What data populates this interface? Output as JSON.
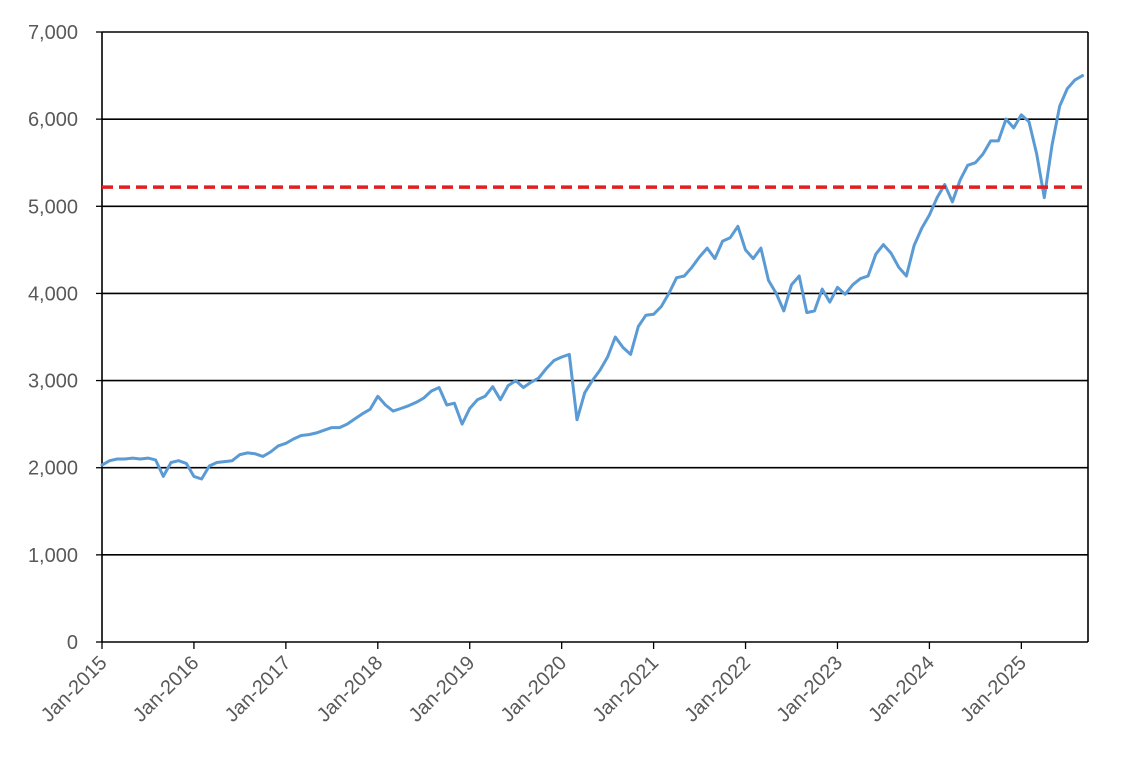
{
  "chart_data": {
    "type": "line",
    "title": "",
    "xlabel": "",
    "ylabel": "",
    "ylim": [
      0,
      7000
    ],
    "xlim": [
      "2015-01",
      "2025-09"
    ],
    "y_ticks": [
      "0",
      "1,000",
      "2,000",
      "3,000",
      "4,000",
      "5,000",
      "6,000",
      "7,000"
    ],
    "y_tick_values": [
      0,
      1000,
      2000,
      3000,
      4000,
      5000,
      6000,
      7000
    ],
    "x_ticks": [
      "Jan-2015",
      "Jan-2016",
      "Jan-2017",
      "Jan-2018",
      "Jan-2019",
      "Jan-2020",
      "Jan-2021",
      "Jan-2022",
      "Jan-2023",
      "Jan-2024",
      "Jan-2025"
    ],
    "x_tick_dates": [
      "2015-01",
      "2016-01",
      "2017-01",
      "2018-01",
      "2019-01",
      "2020-01",
      "2021-01",
      "2022-01",
      "2023-01",
      "2024-01",
      "2025-01"
    ],
    "gridlines": "horizontal",
    "legend": "none",
    "series": [
      {
        "color": "#5b9bd5",
        "x": [
          "2015-01",
          "2015-02",
          "2015-03",
          "2015-04",
          "2015-05",
          "2015-06",
          "2015-07",
          "2015-08",
          "2015-09",
          "2015-10",
          "2015-11",
          "2015-12",
          "2016-01",
          "2016-02",
          "2016-03",
          "2016-04",
          "2016-05",
          "2016-06",
          "2016-07",
          "2016-08",
          "2016-09",
          "2016-10",
          "2016-11",
          "2016-12",
          "2017-01",
          "2017-02",
          "2017-03",
          "2017-04",
          "2017-05",
          "2017-06",
          "2017-07",
          "2017-08",
          "2017-09",
          "2017-10",
          "2017-11",
          "2017-12",
          "2018-01",
          "2018-02",
          "2018-03",
          "2018-04",
          "2018-05",
          "2018-06",
          "2018-07",
          "2018-08",
          "2018-09",
          "2018-10",
          "2018-11",
          "2018-12",
          "2019-01",
          "2019-02",
          "2019-03",
          "2019-04",
          "2019-05",
          "2019-06",
          "2019-07",
          "2019-08",
          "2019-09",
          "2019-10",
          "2019-11",
          "2019-12",
          "2020-01",
          "2020-02",
          "2020-03",
          "2020-04",
          "2020-05",
          "2020-06",
          "2020-07",
          "2020-08",
          "2020-09",
          "2020-10",
          "2020-11",
          "2020-12",
          "2021-01",
          "2021-02",
          "2021-03",
          "2021-04",
          "2021-05",
          "2021-06",
          "2021-07",
          "2021-08",
          "2021-09",
          "2021-10",
          "2021-11",
          "2021-12",
          "2022-01",
          "2022-02",
          "2022-03",
          "2022-04",
          "2022-05",
          "2022-06",
          "2022-07",
          "2022-08",
          "2022-09",
          "2022-10",
          "2022-11",
          "2022-12",
          "2023-01",
          "2023-02",
          "2023-03",
          "2023-04",
          "2023-05",
          "2023-06",
          "2023-07",
          "2023-08",
          "2023-09",
          "2023-10",
          "2023-11",
          "2023-12",
          "2024-01",
          "2024-02",
          "2024-03",
          "2024-04",
          "2024-05",
          "2024-06",
          "2024-07",
          "2024-08",
          "2024-09",
          "2024-10",
          "2024-11",
          "2024-12",
          "2025-01",
          "2025-02",
          "2025-03",
          "2025-04",
          "2025-05",
          "2025-06",
          "2025-07",
          "2025-08",
          "2025-09"
        ],
        "values": [
          2030,
          2080,
          2100,
          2100,
          2110,
          2100,
          2110,
          2090,
          1900,
          2060,
          2080,
          2050,
          1900,
          1870,
          2020,
          2060,
          2070,
          2080,
          2150,
          2170,
          2160,
          2130,
          2180,
          2250,
          2280,
          2330,
          2370,
          2380,
          2400,
          2430,
          2460,
          2460,
          2500,
          2560,
          2620,
          2670,
          2820,
          2720,
          2650,
          2680,
          2710,
          2750,
          2800,
          2880,
          2920,
          2720,
          2740,
          2500,
          2680,
          2780,
          2820,
          2930,
          2780,
          2940,
          3000,
          2920,
          2980,
          3030,
          3140,
          3230,
          3270,
          3300,
          2550,
          2860,
          3000,
          3120,
          3270,
          3500,
          3380,
          3300,
          3620,
          3750,
          3760,
          3850,
          4000,
          4180,
          4200,
          4300,
          4420,
          4520,
          4400,
          4600,
          4640,
          4770,
          4500,
          4400,
          4520,
          4150,
          4000,
          3800,
          4100,
          4200,
          3780,
          3800,
          4050,
          3900,
          4070,
          3990,
          4100,
          4170,
          4200,
          4450,
          4560,
          4460,
          4300,
          4200,
          4550,
          4750,
          4900,
          5100,
          5250,
          5050,
          5300,
          5470,
          5500,
          5600,
          5750,
          5750,
          6000,
          5900,
          6050,
          5970,
          5600,
          5100,
          5700,
          6150,
          6350,
          6450,
          6500
        ]
      },
      {
        "color": "#e02020",
        "style": "dashed",
        "constant": 5220
      }
    ]
  }
}
